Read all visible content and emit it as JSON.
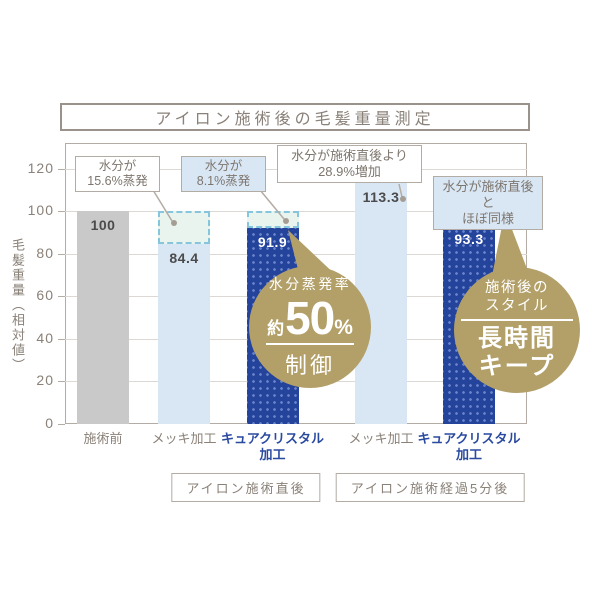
{
  "title": "アイロン施術後の毛髪重量測定",
  "chart_data": {
    "type": "bar",
    "title": "アイロン施術後の毛髪重量測定",
    "ylabel": "毛髪重量（相対値）",
    "ylim": [
      0,
      132
    ],
    "yticks": [
      0,
      20,
      40,
      60,
      80,
      100,
      120
    ],
    "grid": true,
    "legend": "none",
    "categories": [
      "施術前",
      "メッキ加工",
      "キュアクリスタル加工",
      "メッキ加工",
      "キュアクリスタル加工"
    ],
    "values": [
      100,
      84.4,
      91.9,
      113.3,
      93.3
    ],
    "bars": [
      {
        "category": "施術前",
        "category_lines": [
          "施術前"
        ],
        "value": 100,
        "display": "100",
        "variant": "gray",
        "label_style": "dark",
        "category_color": "muted"
      },
      {
        "category": "メッキ加工",
        "category_lines": [
          "メッキ加工"
        ],
        "value": 84.4,
        "display": "84.4",
        "variant": "light",
        "label_style": "dark",
        "category_color": "muted",
        "evaporated_to": 100
      },
      {
        "category": "キュアクリスタル加工",
        "category_lines": [
          "キュアクリスタル",
          "加工"
        ],
        "value": 91.9,
        "display": "91.9",
        "variant": "dark",
        "label_style": "white",
        "category_color": "blue",
        "evaporated_to": 100
      },
      {
        "category": "メッキ加工",
        "category_lines": [
          "メッキ加工"
        ],
        "value": 113.3,
        "display": "113.3",
        "variant": "light",
        "label_style": "dark",
        "category_color": "muted"
      },
      {
        "category": "キュアクリスタル加工",
        "category_lines": [
          "キュアクリスタル",
          "加工"
        ],
        "value": 93.3,
        "display": "93.3",
        "variant": "dark",
        "label_style": "white",
        "category_color": "blue"
      }
    ],
    "group_labels": [
      {
        "label": "アイロン施術直後"
      },
      {
        "label": "アイロン施術経過5分後"
      }
    ],
    "annotations": [
      {
        "line1": "水分が",
        "line2": "15.6%蒸発",
        "variant": "white"
      },
      {
        "line1": "水分が",
        "line2": "8.1%蒸発",
        "variant": "blue"
      },
      {
        "line1": "水分が施術直後より",
        "line2": "28.9%増加",
        "variant": "white"
      },
      {
        "line1": "水分が施術直後と",
        "line2": "ほぼ同様",
        "variant": "blue"
      }
    ],
    "badges": [
      {
        "top": "水分蒸発率",
        "prefix": "約",
        "big": "50",
        "unit": "%",
        "bottom": "制御"
      },
      {
        "top1": "施術後の",
        "top2": "スタイル",
        "bottom1": "長時間",
        "bottom2": "キープ"
      }
    ]
  },
  "colors": {
    "bar_gray": "#c9c9c9",
    "bar_light_blue": "#d9e7f5",
    "bar_dark_blue": "#24439b",
    "bar_dot": "#6b84cc",
    "evaporated_fill": "#e9f4ef",
    "evaporated_border": "#86c6dc",
    "gold": "#b3a069",
    "text_muted": "#8a8178",
    "text_dark": "#4b4b4b",
    "category_blue": "#2a4aa0",
    "box_border": "#b3aca4",
    "callout_blue_fill": "#d9e7f5"
  }
}
